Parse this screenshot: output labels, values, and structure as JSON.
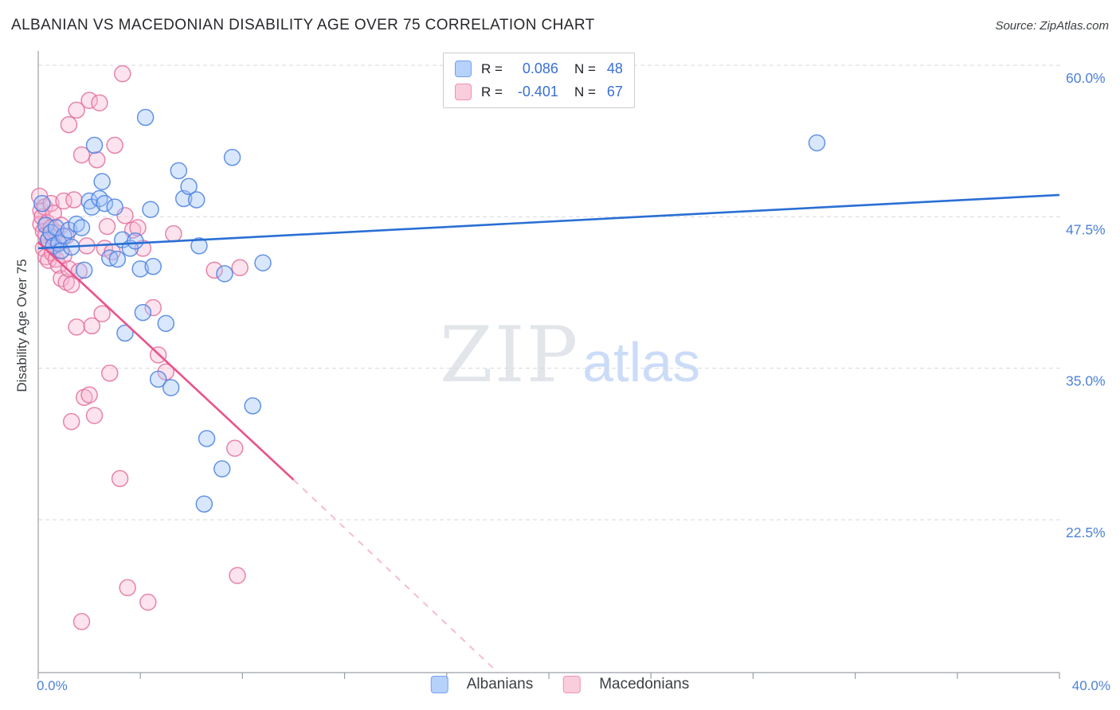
{
  "header": {
    "title": "ALBANIAN VS MACEDONIAN DISABILITY AGE OVER 75 CORRELATION CHART",
    "source": "Source: ZipAtlas.com"
  },
  "watermark": {
    "part1": "ZIP",
    "part2": "atlas"
  },
  "legend_box": {
    "rows": [
      {
        "series": "Albanians",
        "r_label": "R =",
        "r_value": "0.086",
        "n_label": "N =",
        "n_value": "48"
      },
      {
        "series": "Macedonians",
        "r_label": "R =",
        "r_value": "-0.401",
        "n_label": "N =",
        "n_value": "67"
      }
    ]
  },
  "bottom_legend": {
    "items": [
      {
        "label": "Albanians"
      },
      {
        "label": "Macedonians"
      }
    ]
  },
  "colors": {
    "albanian_fill": "#9fc3f9",
    "albanian_stroke": "#4a80e0",
    "albanian_trend": "#2a6fd4",
    "macedonian_fill": "#f9bad2",
    "macedonian_stroke": "#e2709d",
    "macedonian_trend": "#e9548b",
    "axis_label_blue": "#4d82d8",
    "gridline": "#d8dadd",
    "axis": "#9aa0a6"
  },
  "chart_data": {
    "type": "scatter",
    "title": "ALBANIAN VS MACEDONIAN DISABILITY AGE OVER 75 CORRELATION CHART",
    "xlabel": "",
    "ylabel": "Disability Age Over 75",
    "x_unit": "%",
    "y_unit": "%",
    "xlim": [
      0,
      40
    ],
    "ylim": [
      9.9,
      62
    ],
    "grid": "horizontal-dashed",
    "legend_position": "top-center",
    "x_ticks": [
      0,
      4,
      8,
      12,
      16,
      20,
      24,
      28,
      32,
      36,
      40
    ],
    "x_edge_labels": {
      "min": "0.0%",
      "max": "40.0%"
    },
    "y_gridlines": [
      {
        "value": 60,
        "label": "60.0%"
      },
      {
        "value": 47.5,
        "label": "47.5%"
      },
      {
        "value": 35,
        "label": "35.0%"
      },
      {
        "value": 22.5,
        "label": "22.5%"
      }
    ],
    "series": [
      {
        "name": "Albanians",
        "R": 0.086,
        "N": 48,
        "fill": "#9fc3f9",
        "stroke": "#4a80e0",
        "points": [
          [
            0.15,
            48.6
          ],
          [
            0.3,
            46.8
          ],
          [
            0.4,
            45.6
          ],
          [
            0.5,
            46.2
          ],
          [
            0.6,
            45.1
          ],
          [
            0.7,
            46.6
          ],
          [
            0.8,
            45.3
          ],
          [
            0.9,
            44.7
          ],
          [
            1.0,
            45.9
          ],
          [
            1.2,
            46.4
          ],
          [
            1.3,
            45.0
          ],
          [
            1.5,
            46.9
          ],
          [
            1.7,
            46.6
          ],
          [
            1.8,
            43.1
          ],
          [
            2.0,
            48.8
          ],
          [
            2.1,
            48.3
          ],
          [
            2.2,
            53.4
          ],
          [
            2.4,
            49.0
          ],
          [
            2.5,
            50.4
          ],
          [
            2.6,
            48.6
          ],
          [
            2.8,
            44.1
          ],
          [
            3.0,
            48.3
          ],
          [
            3.1,
            44.0
          ],
          [
            3.3,
            45.6
          ],
          [
            3.4,
            37.9
          ],
          [
            3.6,
            44.9
          ],
          [
            3.8,
            45.5
          ],
          [
            4.0,
            43.2
          ],
          [
            4.1,
            39.6
          ],
          [
            4.2,
            55.7
          ],
          [
            4.4,
            48.1
          ],
          [
            4.5,
            43.4
          ],
          [
            4.7,
            34.1
          ],
          [
            5.0,
            38.7
          ],
          [
            5.2,
            33.4
          ],
          [
            5.5,
            51.3
          ],
          [
            5.7,
            49.0
          ],
          [
            5.9,
            50.0
          ],
          [
            6.2,
            48.9
          ],
          [
            6.3,
            45.1
          ],
          [
            6.5,
            23.8
          ],
          [
            6.6,
            29.2
          ],
          [
            7.2,
            26.7
          ],
          [
            7.3,
            42.8
          ],
          [
            7.6,
            52.4
          ],
          [
            8.4,
            31.9
          ],
          [
            8.8,
            43.7
          ],
          [
            30.5,
            53.6
          ]
        ]
      },
      {
        "name": "Macedonians",
        "R": -0.401,
        "N": 67,
        "fill": "#f9bad2",
        "stroke": "#e2709d",
        "points": [
          [
            0.05,
            49.2
          ],
          [
            0.1,
            48.0
          ],
          [
            0.1,
            46.9
          ],
          [
            0.15,
            47.5
          ],
          [
            0.2,
            46.3
          ],
          [
            0.2,
            44.9
          ],
          [
            0.25,
            48.3
          ],
          [
            0.3,
            46.0
          ],
          [
            0.3,
            44.2
          ],
          [
            0.35,
            47.0
          ],
          [
            0.4,
            45.6
          ],
          [
            0.4,
            43.9
          ],
          [
            0.5,
            48.6
          ],
          [
            0.5,
            46.6
          ],
          [
            0.55,
            44.5
          ],
          [
            0.6,
            47.8
          ],
          [
            0.6,
            45.8
          ],
          [
            0.7,
            44.0
          ],
          [
            0.7,
            46.2
          ],
          [
            0.8,
            43.5
          ],
          [
            0.8,
            45.4
          ],
          [
            0.9,
            42.4
          ],
          [
            0.9,
            46.8
          ],
          [
            1.0,
            44.3
          ],
          [
            1.0,
            48.8
          ],
          [
            1.1,
            42.1
          ],
          [
            1.1,
            45.9
          ],
          [
            1.2,
            55.1
          ],
          [
            1.2,
            43.2
          ],
          [
            1.3,
            41.9
          ],
          [
            1.3,
            30.6
          ],
          [
            1.4,
            48.9
          ],
          [
            1.5,
            56.3
          ],
          [
            1.5,
            38.4
          ],
          [
            1.6,
            43.0
          ],
          [
            1.7,
            52.6
          ],
          [
            1.7,
            14.1
          ],
          [
            1.8,
            32.6
          ],
          [
            1.9,
            45.1
          ],
          [
            2.0,
            57.1
          ],
          [
            2.0,
            32.8
          ],
          [
            2.1,
            38.5
          ],
          [
            2.2,
            31.1
          ],
          [
            2.3,
            52.2
          ],
          [
            2.4,
            56.9
          ],
          [
            2.5,
            39.5
          ],
          [
            2.6,
            44.9
          ],
          [
            2.7,
            46.7
          ],
          [
            2.8,
            34.6
          ],
          [
            2.9,
            44.6
          ],
          [
            3.0,
            53.4
          ],
          [
            3.2,
            25.9
          ],
          [
            3.3,
            59.3
          ],
          [
            3.4,
            47.6
          ],
          [
            3.5,
            16.9
          ],
          [
            3.7,
            46.4
          ],
          [
            3.9,
            46.6
          ],
          [
            4.1,
            44.9
          ],
          [
            4.3,
            15.7
          ],
          [
            4.5,
            40.0
          ],
          [
            4.7,
            36.1
          ],
          [
            5.0,
            34.7
          ],
          [
            5.3,
            46.1
          ],
          [
            6.9,
            43.1
          ],
          [
            7.7,
            28.4
          ],
          [
            7.8,
            17.9
          ],
          [
            7.9,
            43.3
          ]
        ]
      }
    ],
    "trendlines": [
      {
        "series": "Albanians",
        "color": "#2a6fd4",
        "solid": [
          [
            0,
            44.9
          ],
          [
            40,
            49.3
          ]
        ]
      },
      {
        "series": "Macedonians",
        "color": "#e9548b",
        "solid": [
          [
            0,
            45.4
          ],
          [
            10,
            25.8
          ]
        ],
        "dashed": [
          [
            10,
            25.8
          ],
          [
            18.0,
            9.9
          ]
        ]
      }
    ]
  }
}
